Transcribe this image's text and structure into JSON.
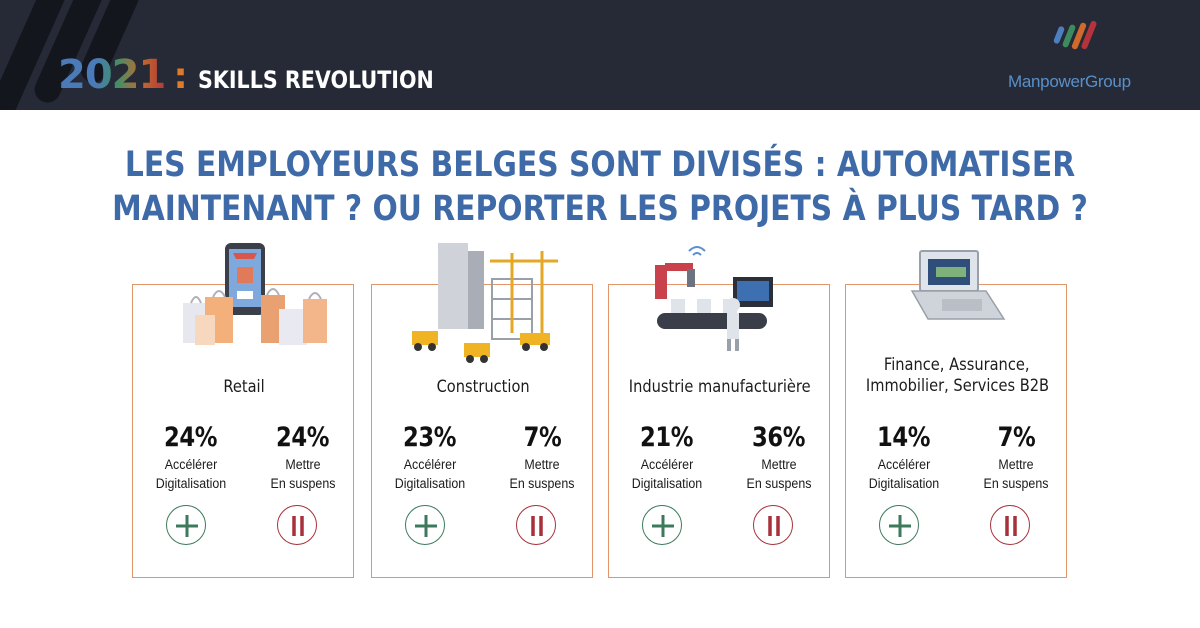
{
  "header": {
    "year": "2021",
    "colon": ":",
    "campaign": "SKILLS REVOLUTION",
    "logo_text": "ManpowerGroup",
    "logo_mark": "manpowergroup-logo-icon"
  },
  "headline": {
    "line1": "LES EMPLOYEURS BELGES SONT DIVISÉS : AUTOMATISER",
    "line2": "MAINTENANT ? OU REPORTER LES PROJETS À PLUS TARD ?"
  },
  "colors": {
    "header_bg": "#262a36",
    "headline": "#3f6aa8",
    "card_border": "#e3956a",
    "accelerate": "#3d7a5c",
    "pause": "#a7313a"
  },
  "labels": {
    "accelerate_1": "Accélérer",
    "accelerate_2": "Digitalisation",
    "pause_1": "Mettre",
    "pause_2": "En suspens"
  },
  "cards": [
    {
      "title": "Retail",
      "accelerate": "24%",
      "pause": "24%",
      "illustration": "shopping-bags-icon"
    },
    {
      "title": "Construction",
      "accelerate": "23%",
      "pause": "7%",
      "illustration": "construction-site-icon"
    },
    {
      "title": "Industrie manufacturière",
      "accelerate": "21%",
      "pause": "36%",
      "illustration": "factory-robot-icon"
    },
    {
      "title_line1": "Finance, Assurance,",
      "title_line2": "Immobilier, Services B2B",
      "accelerate": "14%",
      "pause": "7%",
      "illustration": "laptop-money-icon"
    }
  ]
}
